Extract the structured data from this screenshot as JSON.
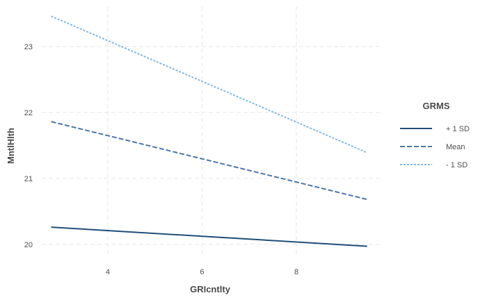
{
  "chart_data": {
    "type": "line",
    "xlabel": "GRIcntlty",
    "ylabel": "MntlHlth",
    "xlim": [
      2.6,
      9.8
    ],
    "ylim": [
      19.85,
      23.6
    ],
    "x_ticks": [
      4,
      6,
      8
    ],
    "y_ticks": [
      20,
      21,
      22,
      23
    ],
    "x_tick_labels": [
      "4",
      "6",
      "8"
    ],
    "y_tick_labels": [
      "20",
      "21",
      "22",
      "23"
    ],
    "grid": true,
    "legend": {
      "title": "GRMS",
      "position": "right"
    },
    "series": [
      {
        "name": "+ 1 SD",
        "x": [
          2.8,
          9.5
        ],
        "y": [
          20.26,
          19.97
        ],
        "color": "#1f4e79",
        "dash": "solid"
      },
      {
        "name": "Mean",
        "x": [
          2.8,
          9.5
        ],
        "y": [
          21.86,
          20.68
        ],
        "color": "#4a76a8",
        "dash": "dashed"
      },
      {
        "name": "- 1 SD",
        "x": [
          2.8,
          9.5
        ],
        "y": [
          23.46,
          21.39
        ],
        "color": "#7fb8e6",
        "dash": "dotted"
      }
    ]
  }
}
